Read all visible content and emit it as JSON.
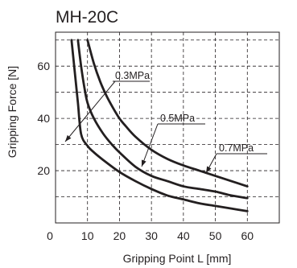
{
  "chart_data": {
    "type": "line",
    "title": "MH-20C",
    "xlabel": "Gripping Point L  [mm]",
    "ylabel": "Gripping Force [N]",
    "xlim": [
      0,
      70
    ],
    "ylim": [
      0,
      73
    ],
    "x_ticks": [
      0,
      10,
      20,
      30,
      40,
      50,
      60
    ],
    "x_tick_labels": [
      "0",
      "10",
      "20",
      "30",
      "40",
      "50",
      "60"
    ],
    "y_ticks": [
      20,
      40,
      60
    ],
    "y_tick_labels": [
      "20",
      "40",
      "60"
    ],
    "grid": true,
    "series": [
      {
        "name": "0.3MPa",
        "x": [
          5,
          6,
          7,
          8,
          10,
          12,
          15,
          20,
          25,
          30,
          35,
          40,
          45,
          50,
          55,
          60
        ],
        "y": [
          70,
          58,
          46,
          34,
          29.5,
          27,
          24,
          19.5,
          16,
          13,
          10.5,
          9,
          7.5,
          6.5,
          5.5,
          4.5
        ]
      },
      {
        "name": "0.5MPa",
        "x": [
          7,
          8,
          9,
          10,
          12,
          15,
          18,
          20,
          25,
          30,
          35,
          40,
          45,
          50,
          55,
          60
        ],
        "y": [
          70,
          60,
          52,
          46,
          40,
          34,
          29.5,
          27,
          21.5,
          18,
          16,
          14,
          13,
          12,
          10.5,
          9.5
        ]
      },
      {
        "name": "0.7MPa",
        "x": [
          10,
          12,
          14,
          16,
          18,
          20,
          22,
          25,
          30,
          35,
          40,
          45,
          50,
          55,
          60
        ],
        "y": [
          70,
          61,
          54,
          48.5,
          44,
          40,
          37,
          33,
          28,
          24.5,
          22,
          20,
          18,
          16,
          14
        ]
      }
    ],
    "annotations": [
      {
        "text": "0.3MPa",
        "series": "0.3MPa"
      },
      {
        "text": "0.5MPa",
        "series": "0.5MPa"
      },
      {
        "text": "0.7MPa",
        "series": "0.7MPa"
      }
    ]
  }
}
